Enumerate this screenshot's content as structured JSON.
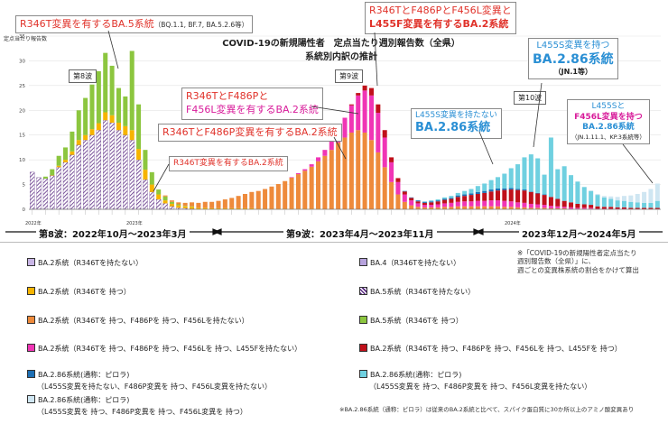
{
  "chart_title": {
    "line1": "COVID-19の新規陽性者　定点当たり週別報告数（全県）",
    "line2": "系統別内訳の推計"
  },
  "y_axis_label": "定点当たり報告数",
  "callouts": {
    "ba5_head": "R346T変異を有するBA.5系統",
    "ba5_tail": "（BQ.1.1, BF.7, BA.5.2.6等）",
    "l455f_a": "R346TとF486PとF456L変異と",
    "l455f_b": "L455F変異を有するBA.2系統",
    "f456l_a": "R346TとF486Pと",
    "f456l_b": "F456L変異を有するBA.2系統",
    "f486p": "R346TとF486P変異を有するBA.2系統",
    "r346t": "R346T変異を有するBA.2系統",
    "no_l455s_a": "L455S変異を持たない",
    "no_l455s_b": "BA.2.86系統",
    "jn1_a": "L455S変異を持つ",
    "jn1_b": "BA.2.86系統",
    "jn1_c": "（JN.1等）",
    "kp3_a": "L455Sと",
    "kp3_b": "F456L変異を持つ",
    "kp3_c": "BA.2.86系統",
    "kp3_d": "（JN.1.11.1、KP.3系統等）"
  },
  "waves": {
    "w8": "第8波",
    "w9": "第9波",
    "w10": "第10波"
  },
  "year_labels": {
    "y2022": "2022年",
    "y2023": "2023年",
    "y2024": "2024年"
  },
  "periods": {
    "p8": "第8波：2022年10月～2023年3月",
    "p9": "第9波：2023年4月～2023年11月",
    "p10": "2023年12月～2024年5月"
  },
  "note_method": [
    "※「COVID-19の新規陽性者定点当たり",
    "週別報告数（全県）」に、",
    "週ごとの変異株系統の割合をかけて算出"
  ],
  "note_footer": "※BA.2.86系統（通称：ピロラ）は従来のBA.2系統と比べて、スパイク蛋白質に30か所以上のアミノ酸変異あり",
  "legend": [
    {
      "name": "BA.2系統（R346Tを持たない）",
      "color": "#c9b6e6"
    },
    {
      "name": "BA.4（R346Tを持たない）",
      "color": "#b7a3dd"
    },
    {
      "name": "BA.2系統（R346Tを 持つ）",
      "color": "#f6b400"
    },
    {
      "name": "BA.5系統（R346Tを持たない）",
      "color": "hatch"
    },
    {
      "name": "BA.2系統（R346Tを 持つ、F486Pを 持つ、F456Lを持たない）",
      "color": "#ee8a3b"
    },
    {
      "name": "BA.5系統（R346Tを 持つ）",
      "color": "#8cc63f"
    },
    {
      "name": "BA.2系統（R346Tを 持つ、F486Pを 持つ、F456Lを 持つ、L455Fを持たない）",
      "color": "#f035b5"
    },
    {
      "name": "BA.2系統（R346Tを 持つ、F486Pを 持つ、F456Lを 持つ、L455Fを 持つ）",
      "color": "#c0101a"
    },
    {
      "name": "BA.2.86系統(通称：ピロラ)",
      "sub": "（L455S変異を持たない、F486P変異を 持つ、F456L変異を持たない）",
      "color": "#1d6fb4"
    },
    {
      "name": "BA.2.86系統(通称：ピロラ)",
      "sub": "（L455S変異を 持つ、F486P変異を 持つ、F456L変異を持たない）",
      "color": "#6fd0e0"
    },
    {
      "name": "BA.2.86系統(通称：ピロラ)",
      "sub": "（L455S変異を 持つ、F486P変異を 持つ、F456L変異を 持つ）",
      "color": "#cfe6f2"
    }
  ],
  "chart_data": {
    "type": "bar",
    "stacked": true,
    "ylabel": "定点当たり報告数",
    "ylim": [
      0,
      35
    ],
    "yticks": [
      0,
      5,
      10,
      15,
      20,
      25,
      30,
      35
    ],
    "series_order": [
      "BA.5_noR346T",
      "BA.2_R346T",
      "BA.5_R346T",
      "BA.2_F486P",
      "BA.2_F456L",
      "BA.2_L455F",
      "BA.2.86_noL455S",
      "BA.2.86_L455S",
      "BA.2.86_L455S_F456L"
    ],
    "colors": {
      "BA.5_noR346T": "hatch",
      "BA.2_R346T": "#f6b400",
      "BA.5_R346T": "#8cc63f",
      "BA.2_F486P": "#ee8a3b",
      "BA.2_F456L": "#f035b5",
      "BA.2_L455F": "#c0101a",
      "BA.2.86_noL455S": "#1d6fb4",
      "BA.2.86_L455S": "#6fd0e0",
      "BA.2.86_L455S_F456L": "#cfe6f2"
    },
    "weeks": [
      [
        7.5,
        0,
        0,
        0,
        0,
        0,
        0,
        0,
        0
      ],
      [
        6.4,
        0,
        0,
        0,
        0,
        0,
        0,
        0,
        0
      ],
      [
        6.2,
        0,
        0.4,
        0,
        0,
        0,
        0,
        0,
        0
      ],
      [
        6.8,
        0.1,
        1.2,
        0,
        0,
        0,
        0,
        0,
        0
      ],
      [
        8.5,
        0.3,
        2,
        0,
        0,
        0,
        0,
        0,
        0
      ],
      [
        9.5,
        0.5,
        2.5,
        0,
        0,
        0,
        0,
        0,
        0
      ],
      [
        11,
        0.7,
        4,
        0,
        0,
        0,
        0,
        0,
        0
      ],
      [
        13,
        1,
        6,
        0,
        0,
        0,
        0,
        0,
        0
      ],
      [
        14,
        1,
        7.5,
        0,
        0,
        0,
        0,
        0,
        0
      ],
      [
        15,
        1.2,
        9,
        0,
        0,
        0,
        0,
        0,
        0
      ],
      [
        16,
        1.4,
        10.5,
        0,
        0,
        0,
        0,
        0,
        0
      ],
      [
        18,
        1.6,
        12,
        0,
        0,
        0,
        0,
        0,
        0
      ],
      [
        17.5,
        1.5,
        10,
        0,
        0,
        0,
        0,
        0,
        0
      ],
      [
        16,
        1.5,
        7,
        0,
        0,
        0,
        0,
        0,
        0
      ],
      [
        15,
        1.8,
        6,
        0,
        0,
        0,
        0,
        0,
        0
      ],
      [
        14,
        2,
        16,
        0,
        0,
        0,
        0,
        0,
        0
      ],
      [
        10,
        2.2,
        9,
        0,
        0,
        0,
        0,
        0,
        0
      ],
      [
        6,
        2,
        4,
        0,
        0,
        0,
        0,
        0,
        0
      ],
      [
        3.5,
        1.5,
        2.5,
        0,
        0,
        0,
        0,
        0,
        0
      ],
      [
        2,
        1,
        1,
        0,
        0,
        0,
        0,
        0,
        0
      ],
      [
        1.2,
        0.6,
        0.8,
        0.2,
        0,
        0,
        0,
        0,
        0
      ],
      [
        0.6,
        0.5,
        0.4,
        0.3,
        0,
        0,
        0,
        0,
        0
      ],
      [
        0.3,
        0.5,
        0.2,
        0.4,
        0,
        0,
        0,
        0,
        0
      ],
      [
        0.2,
        0.4,
        0.1,
        0.6,
        0,
        0,
        0,
        0,
        0
      ],
      [
        0.1,
        0.4,
        0.1,
        0.8,
        0,
        0,
        0,
        0,
        0
      ],
      [
        0,
        0.3,
        0,
        1,
        0,
        0,
        0,
        0,
        0
      ],
      [
        0,
        0.3,
        0,
        1.2,
        0,
        0,
        0,
        0,
        0
      ],
      [
        0,
        0.2,
        0,
        1.3,
        0,
        0,
        0,
        0,
        0
      ],
      [
        0,
        0.2,
        0,
        1.5,
        0,
        0,
        0,
        0,
        0
      ],
      [
        0,
        0.2,
        0,
        1.8,
        0,
        0,
        0,
        0,
        0
      ],
      [
        0,
        0.2,
        0,
        2.1,
        0,
        0,
        0,
        0,
        0
      ],
      [
        0,
        0.2,
        0,
        2.5,
        0,
        0,
        0,
        0,
        0
      ],
      [
        0,
        0.2,
        0,
        2.9,
        0,
        0,
        0,
        0,
        0
      ],
      [
        0,
        0.2,
        0,
        3.3,
        0,
        0,
        0,
        0,
        0
      ],
      [
        0,
        0.1,
        0,
        3.6,
        0,
        0,
        0,
        0,
        0
      ],
      [
        0,
        0.1,
        0,
        4,
        0,
        0,
        0,
        0,
        0
      ],
      [
        0,
        0.1,
        0,
        4.5,
        0,
        0,
        0,
        0,
        0
      ],
      [
        0,
        0.1,
        0,
        5,
        0,
        0,
        0,
        0,
        0
      ],
      [
        0,
        0.1,
        0,
        5.6,
        0,
        0,
        0,
        0,
        0
      ],
      [
        0,
        0.1,
        0,
        6.3,
        0.1,
        0,
        0,
        0,
        0
      ],
      [
        0,
        0.1,
        0,
        7,
        0.2,
        0,
        0,
        0,
        0
      ],
      [
        0,
        0.1,
        0,
        7.7,
        0.3,
        0,
        0,
        0,
        0
      ],
      [
        0,
        0.1,
        0,
        8.5,
        0.5,
        0,
        0,
        0,
        0
      ],
      [
        0,
        0.1,
        0,
        9.6,
        0.8,
        0,
        0,
        0,
        0
      ],
      [
        0,
        0,
        0,
        10.8,
        1.2,
        0,
        0,
        0,
        0
      ],
      [
        0,
        0,
        0,
        12,
        2,
        0,
        0,
        0,
        0
      ],
      [
        0,
        0,
        0,
        13.5,
        3,
        0,
        0,
        0,
        0
      ],
      [
        0,
        0,
        0,
        14.5,
        4,
        0,
        0,
        0,
        0
      ],
      [
        0,
        0,
        0,
        15.5,
        5.5,
        0.2,
        0,
        0,
        0
      ],
      [
        0,
        0,
        0,
        16,
        7,
        0.5,
        0,
        0,
        0
      ],
      [
        0,
        0,
        0,
        15.5,
        8.5,
        1,
        0,
        0,
        0
      ],
      [
        0,
        0,
        0,
        14,
        9,
        1.5,
        0,
        0,
        0
      ],
      [
        0,
        0,
        0,
        11.5,
        8,
        1.7,
        0,
        0,
        0
      ],
      [
        0,
        0,
        0,
        8.5,
        6,
        1.5,
        0,
        0,
        0
      ],
      [
        0,
        0,
        0,
        5.5,
        4,
        1,
        0,
        0,
        0
      ],
      [
        0,
        0,
        0,
        3,
        2.5,
        0.8,
        0,
        0,
        0
      ],
      [
        0,
        0,
        0,
        1.5,
        1.5,
        0.6,
        0.1,
        0,
        0
      ],
      [
        0,
        0,
        0,
        0.8,
        1,
        0.5,
        0.1,
        0,
        0
      ],
      [
        0,
        0,
        0,
        0.5,
        0.7,
        0.4,
        0.2,
        0,
        0
      ],
      [
        0,
        0,
        0,
        0.4,
        0.5,
        0.4,
        0.2,
        0.1,
        0
      ],
      [
        0,
        0,
        0,
        0.4,
        0.5,
        0.5,
        0.2,
        0.2,
        0
      ],
      [
        0,
        0,
        0,
        0.4,
        0.6,
        0.6,
        0.2,
        0.2,
        0
      ],
      [
        0,
        0,
        0,
        0.5,
        0.7,
        0.7,
        0.2,
        0.3,
        0
      ],
      [
        0,
        0,
        0,
        0.5,
        0.8,
        0.8,
        0.2,
        0.4,
        0
      ],
      [
        0,
        0,
        0,
        0.6,
        0.9,
        1,
        0.3,
        0.5,
        0
      ],
      [
        0,
        0,
        0,
        0.6,
        1,
        1.1,
        0.3,
        0.7,
        0
      ],
      [
        0,
        0,
        0,
        0.6,
        1,
        1.3,
        0.3,
        0.9,
        0
      ],
      [
        0,
        0,
        0,
        0.6,
        1.1,
        1.4,
        0.4,
        1.2,
        0
      ],
      [
        0,
        0,
        0,
        0.6,
        1.1,
        1.6,
        0.4,
        1.5,
        0
      ],
      [
        0,
        0,
        0,
        0.6,
        1.2,
        1.8,
        0.4,
        1.9,
        0
      ],
      [
        0,
        0,
        0,
        0.6,
        1.2,
        2,
        0.4,
        2.3,
        0
      ],
      [
        0,
        0,
        0,
        0.5,
        1.2,
        2.2,
        0.3,
        3,
        0
      ],
      [
        0,
        0,
        0,
        0.5,
        1.1,
        2.4,
        0.3,
        4,
        0
      ],
      [
        0,
        0,
        0,
        0.4,
        1,
        2.5,
        0.2,
        5,
        0
      ],
      [
        0,
        0,
        0,
        0.4,
        0.9,
        2.5,
        0.2,
        6.5,
        0
      ],
      [
        0,
        0,
        0,
        0.3,
        0.8,
        2.4,
        0.1,
        7.5,
        0
      ],
      [
        0,
        0,
        0,
        0.3,
        0.7,
        2.2,
        0.1,
        7,
        0
      ],
      [
        0,
        0,
        0,
        0.3,
        0.6,
        2,
        0.1,
        4,
        0
      ],
      [
        0,
        0,
        0,
        0.2,
        0.5,
        1.8,
        0,
        12,
        0
      ],
      [
        0,
        0,
        0,
        0.2,
        0.4,
        1.5,
        0,
        6,
        0
      ],
      [
        0,
        0,
        0,
        0.2,
        0.3,
        1.2,
        0,
        7,
        0
      ],
      [
        0,
        0,
        0,
        0.1,
        0.3,
        1,
        0,
        5.5,
        0
      ],
      [
        0,
        0,
        0,
        0.1,
        0.2,
        0.8,
        0,
        4.5,
        0
      ],
      [
        0,
        0,
        0,
        0.1,
        0.2,
        0.7,
        0,
        3.5,
        0
      ],
      [
        0,
        0,
        0,
        0.1,
        0.2,
        0.6,
        0,
        2.8,
        0.1
      ],
      [
        0,
        0,
        0,
        0,
        0.1,
        0.5,
        0,
        2.3,
        0.2
      ],
      [
        0,
        0,
        0,
        0,
        0.1,
        0.4,
        0,
        1.9,
        0.3
      ],
      [
        0,
        0,
        0,
        0,
        0.1,
        0.4,
        0,
        1.6,
        0.5
      ],
      [
        0,
        0,
        0,
        0,
        0.1,
        0.3,
        0,
        1.4,
        0.7
      ],
      [
        0,
        0,
        0,
        0,
        0.1,
        0.3,
        0,
        1.3,
        1
      ],
      [
        0,
        0,
        0,
        0,
        0,
        0.3,
        0,
        1.2,
        1.3
      ],
      [
        0,
        0,
        0,
        0,
        0,
        0.3,
        0,
        1.1,
        1.7
      ],
      [
        0,
        0,
        0,
        0,
        0,
        0.3,
        0,
        1,
        2.2
      ],
      [
        0,
        0,
        0,
        0,
        0,
        0.3,
        0,
        1,
        2.8
      ],
      [
        0,
        0,
        0,
        0,
        0,
        0.3,
        0,
        1.4,
        3.5
      ]
    ]
  }
}
